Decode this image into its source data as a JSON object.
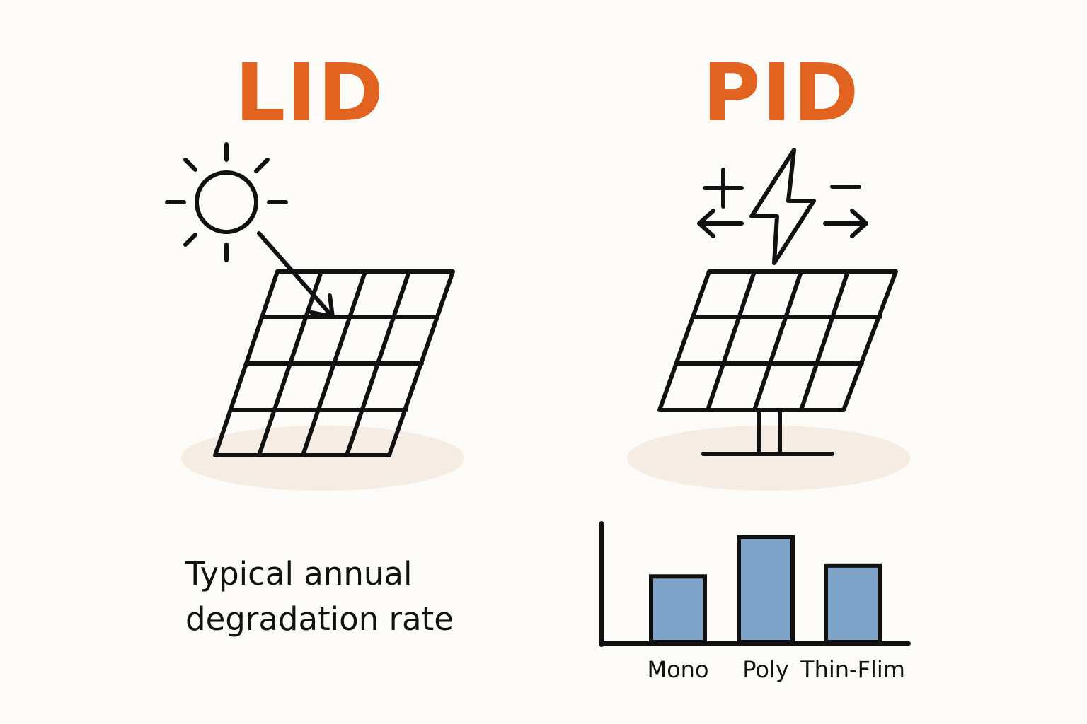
{
  "titles": {
    "lid": "LID",
    "pid": "PID"
  },
  "caption": {
    "line1": "Typical annual",
    "line2": "degradation rate"
  },
  "colors": {
    "accent": "#e2621f",
    "ink": "#111111",
    "bar_fill": "#7ea4c9",
    "shadow": "#f5ece3",
    "background": "#fcfbf8"
  },
  "icons": [
    "sun-icon",
    "arrow-icon",
    "solar-panel-icon",
    "plus-icon",
    "minus-icon",
    "lightning-bolt-icon",
    "left-arrow-icon",
    "right-arrow-icon",
    "panel-stand-icon"
  ],
  "chart_data": {
    "type": "bar",
    "categories": [
      "Mono",
      "Poly",
      "Thin-Flim"
    ],
    "values": [
      0.6,
      0.96,
      0.7
    ],
    "title": "",
    "xlabel": "",
    "ylabel": "",
    "ylim": [
      0,
      1.1
    ],
    "grid": false
  }
}
